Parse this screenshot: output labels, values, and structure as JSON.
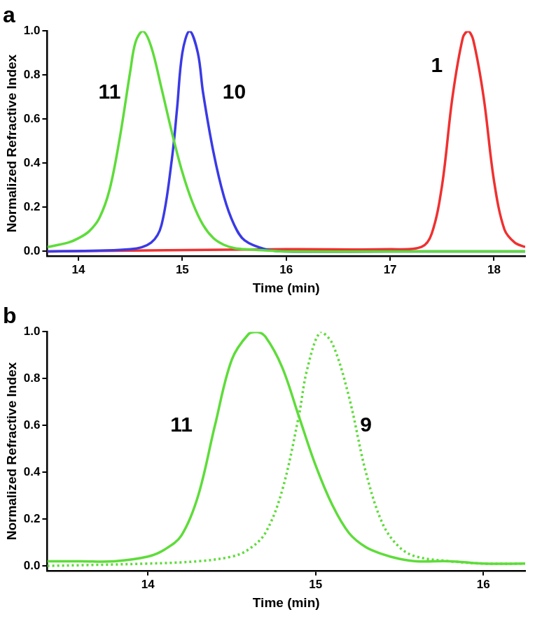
{
  "chart_data": [
    {
      "type": "line",
      "title": "a",
      "x_label": "Time (min)",
      "y_label": "Normalized Refractive Index",
      "xlim": [
        13.7,
        18.3
      ],
      "xticks": [
        14,
        15,
        16,
        17,
        18
      ],
      "ylim": [
        -0.02,
        1.0
      ],
      "yticks": [
        {
          "value": 0,
          "label": "0.0"
        },
        {
          "value": 0.2,
          "label": "0.2"
        },
        {
          "value": 0.4,
          "label": "0.4"
        },
        {
          "value": 0.6,
          "label": "0.6"
        },
        {
          "value": 0.8,
          "label": "0.8"
        },
        {
          "value": 1.0,
          "label": "1.0"
        }
      ],
      "grid": false,
      "series": [
        {
          "name": "11",
          "color": "#5edc3a",
          "line_style": "solid",
          "x": [
            13.7,
            13.9,
            14.0,
            14.1,
            14.2,
            14.3,
            14.4,
            14.5,
            14.55,
            14.62,
            14.7,
            14.8,
            14.9,
            15.0,
            15.1,
            15.2,
            15.3,
            15.4,
            15.5,
            15.6,
            15.8,
            16.0,
            17.0,
            18.0,
            18.3
          ],
          "values": [
            0.02,
            0.04,
            0.06,
            0.09,
            0.15,
            0.28,
            0.52,
            0.82,
            0.95,
            1.0,
            0.93,
            0.74,
            0.54,
            0.36,
            0.22,
            0.12,
            0.06,
            0.03,
            0.015,
            0.01,
            0.005,
            0.0,
            0.0,
            0.0,
            0.0
          ]
        },
        {
          "name": "10",
          "color": "#3a3ae6",
          "line_style": "solid",
          "x": [
            13.7,
            14.5,
            14.7,
            14.8,
            14.9,
            14.95,
            15.0,
            15.07,
            15.15,
            15.2,
            15.3,
            15.4,
            15.5,
            15.6,
            15.8,
            16.0,
            17.0,
            18.3
          ],
          "values": [
            0.0,
            0.01,
            0.04,
            0.12,
            0.42,
            0.65,
            0.9,
            1.0,
            0.9,
            0.72,
            0.45,
            0.25,
            0.12,
            0.05,
            0.01,
            0.0,
            0.0,
            0.0
          ]
        },
        {
          "name": "1",
          "color": "#f03030",
          "line_style": "solid",
          "x": [
            13.7,
            16.0,
            17.0,
            17.3,
            17.4,
            17.5,
            17.6,
            17.7,
            17.75,
            17.8,
            17.9,
            18.0,
            18.1,
            18.2,
            18.3
          ],
          "values": [
            0.0,
            0.01,
            0.01,
            0.02,
            0.08,
            0.3,
            0.7,
            0.97,
            1.0,
            0.96,
            0.7,
            0.32,
            0.1,
            0.04,
            0.02
          ]
        }
      ],
      "annotations": [
        {
          "text": "11",
          "x": 14.3,
          "y": 0.72
        },
        {
          "text": "10",
          "x": 15.5,
          "y": 0.72
        },
        {
          "text": "1",
          "x": 17.45,
          "y": 0.84
        }
      ]
    },
    {
      "type": "line",
      "title": "b",
      "x_label": "Time (min)",
      "y_label": "Normalized Refractive Index",
      "xlim": [
        13.4,
        16.25
      ],
      "xticks": [
        14,
        15,
        16
      ],
      "ylim": [
        -0.02,
        1.0
      ],
      "yticks": [
        {
          "value": 0,
          "label": "0.0"
        },
        {
          "value": 0.2,
          "label": "0.2"
        },
        {
          "value": 0.4,
          "label": "0.4"
        },
        {
          "value": 0.6,
          "label": "0.6"
        },
        {
          "value": 0.8,
          "label": "0.8"
        },
        {
          "value": 1.0,
          "label": "1.0"
        }
      ],
      "grid": false,
      "series": [
        {
          "name": "11",
          "color": "#5edc3a",
          "line_style": "solid",
          "x": [
            13.4,
            13.6,
            13.8,
            14.0,
            14.1,
            14.2,
            14.3,
            14.4,
            14.5,
            14.6,
            14.65,
            14.7,
            14.8,
            14.9,
            15.0,
            15.1,
            15.2,
            15.3,
            15.4,
            15.5,
            15.6,
            15.8,
            16.0,
            16.25
          ],
          "values": [
            0.02,
            0.02,
            0.02,
            0.04,
            0.07,
            0.13,
            0.3,
            0.6,
            0.88,
            0.99,
            1.0,
            0.98,
            0.85,
            0.64,
            0.43,
            0.26,
            0.14,
            0.08,
            0.05,
            0.03,
            0.02,
            0.02,
            0.01,
            0.01
          ]
        },
        {
          "name": "9",
          "color": "#5edc3a",
          "line_style": "dotted",
          "x": [
            13.4,
            14.0,
            14.3,
            14.5,
            14.6,
            14.7,
            14.8,
            14.9,
            14.95,
            15.03,
            15.1,
            15.2,
            15.3,
            15.4,
            15.5,
            15.6,
            15.8,
            16.0,
            16.25
          ],
          "values": [
            0.0,
            0.01,
            0.02,
            0.04,
            0.07,
            0.14,
            0.32,
            0.64,
            0.84,
            1.0,
            0.95,
            0.72,
            0.4,
            0.18,
            0.08,
            0.04,
            0.02,
            0.01,
            0.01
          ]
        }
      ],
      "annotations": [
        {
          "text": "11",
          "x": 14.2,
          "y": 0.6
        },
        {
          "text": "9",
          "x": 15.3,
          "y": 0.6
        }
      ]
    }
  ]
}
